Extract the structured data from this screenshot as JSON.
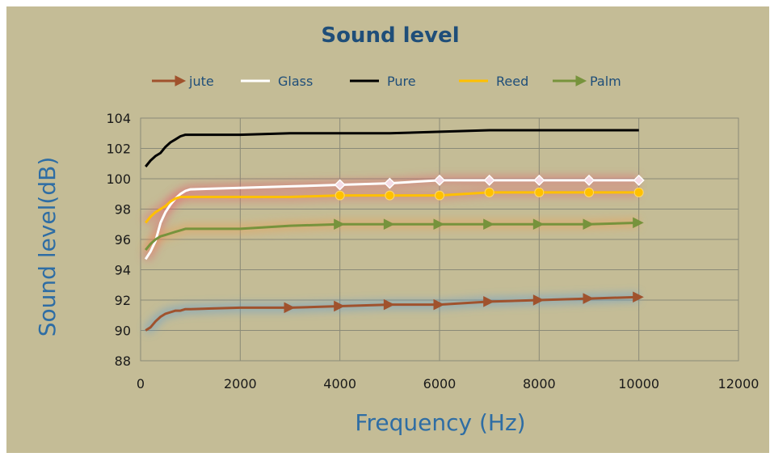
{
  "chart_data": {
    "type": "line",
    "title": "Sound level",
    "xlabel": "Frequency  (Hz)",
    "ylabel": "Sound level(dB)",
    "xlim": [
      0,
      12000
    ],
    "ylim": [
      88,
      104
    ],
    "xticks": [
      0,
      2000,
      4000,
      6000,
      8000,
      10000,
      12000
    ],
    "yticks": [
      88,
      90,
      92,
      94,
      96,
      98,
      100,
      102,
      104
    ],
    "grid": true,
    "legend_position": "top",
    "series": [
      {
        "name": "jute",
        "color": "#a0522d",
        "marker": "arrow",
        "x": [
          100,
          200,
          300,
          400,
          500,
          600,
          700,
          800,
          900,
          1000,
          2000,
          3000,
          4000,
          5000,
          6000,
          7000,
          8000,
          9000,
          10000
        ],
        "y": [
          90.0,
          90.2,
          90.6,
          90.9,
          91.1,
          91.2,
          91.3,
          91.3,
          91.4,
          91.4,
          91.5,
          91.5,
          91.6,
          91.7,
          91.7,
          91.9,
          92.0,
          92.1,
          92.2
        ],
        "marked_x": [
          3000,
          4000,
          5000,
          6000,
          7000,
          8000,
          9000,
          10000
        ]
      },
      {
        "name": "Glass",
        "color": "#ffffff",
        "marker": "diamond",
        "x": [
          100,
          200,
          300,
          400,
          500,
          600,
          700,
          800,
          900,
          1000,
          2000,
          3000,
          4000,
          5000,
          6000,
          7000,
          8000,
          9000,
          10000
        ],
        "y": [
          94.7,
          95.2,
          95.9,
          97.1,
          97.8,
          98.3,
          98.7,
          99.0,
          99.2,
          99.3,
          99.4,
          99.5,
          99.6,
          99.7,
          99.9,
          99.9,
          99.9,
          99.9,
          99.9
        ],
        "marked_x": [
          4000,
          5000,
          6000,
          7000,
          8000,
          9000,
          10000
        ]
      },
      {
        "name": "Pure",
        "color": "#000000",
        "marker": "none",
        "x": [
          100,
          200,
          300,
          400,
          500,
          600,
          700,
          800,
          900,
          1000,
          2000,
          3000,
          4000,
          5000,
          6000,
          7000,
          8000,
          9000,
          10000
        ],
        "y": [
          100.8,
          101.2,
          101.5,
          101.7,
          102.1,
          102.4,
          102.6,
          102.8,
          102.9,
          102.9,
          102.9,
          103.0,
          103.0,
          103.0,
          103.1,
          103.2,
          103.2,
          103.2,
          103.2
        ],
        "marked_x": []
      },
      {
        "name": "Reed",
        "color": "#ffc000",
        "marker": "circle",
        "x": [
          100,
          200,
          300,
          400,
          500,
          600,
          700,
          800,
          900,
          1000,
          2000,
          3000,
          4000,
          5000,
          6000,
          7000,
          8000,
          9000,
          10000
        ],
        "y": [
          97.1,
          97.5,
          97.8,
          98.0,
          98.2,
          98.5,
          98.7,
          98.8,
          98.8,
          98.8,
          98.8,
          98.8,
          98.9,
          98.9,
          98.9,
          99.1,
          99.1,
          99.1,
          99.1
        ],
        "marked_x": [
          4000,
          5000,
          6000,
          7000,
          8000,
          9000,
          10000
        ]
      },
      {
        "name": "Palm",
        "color": "#77933c",
        "marker": "arrow",
        "x": [
          100,
          200,
          300,
          400,
          500,
          600,
          700,
          800,
          900,
          1000,
          2000,
          3000,
          4000,
          5000,
          6000,
          7000,
          8000,
          9000,
          10000
        ],
        "y": [
          95.3,
          95.7,
          96.0,
          96.2,
          96.3,
          96.4,
          96.5,
          96.6,
          96.7,
          96.7,
          96.7,
          96.9,
          97.0,
          97.0,
          97.0,
          97.0,
          97.0,
          97.0,
          97.1
        ],
        "marked_x": [
          4000,
          5000,
          6000,
          7000,
          8000,
          9000,
          10000
        ]
      }
    ]
  }
}
